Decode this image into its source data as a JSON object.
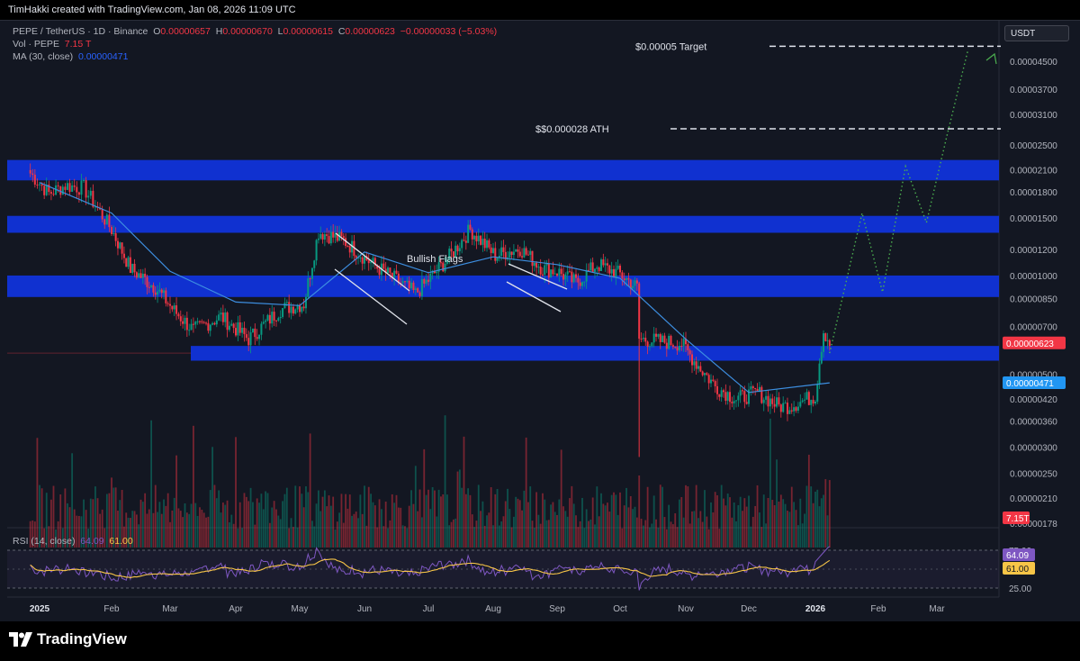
{
  "header": {
    "credit": "TimHakki created with TradingView.com, Jan 08, 2026 11:09 UTC"
  },
  "legend": {
    "symbol": "PEPE / TetherUS · 1D · Binance",
    "o_label": "O",
    "o": "0.00000657",
    "h_label": "H",
    "h": "0.00000670",
    "l_label": "L",
    "l": "0.00000615",
    "c_label": "C",
    "c": "0.00000623",
    "change": "−0.00000033 (−5.03%)",
    "vol_label": "Vol · PEPE",
    "vol": "7.15 T",
    "ma_label": "MA (30, close)",
    "ma": "0.00000471",
    "rsi_label": "RSI (14, close)",
    "rsi": "64.09",
    "rsi_ma": "61.00"
  },
  "currency_button": "USDT",
  "brand": {
    "name": "TradingView"
  },
  "chart_data": {
    "type": "candlestick",
    "symbol": "PEPE / TetherUS",
    "interval": "1D",
    "y_scale": "log",
    "x_ticks": [
      "2025",
      "Feb",
      "Mar",
      "Apr",
      "May",
      "Jun",
      "Jul",
      "Aug",
      "Sep",
      "Oct",
      "Nov",
      "Dec",
      "2026",
      "Feb",
      "Mar"
    ],
    "x_tick_dates": [
      "2025-01-01",
      "2025-02-01",
      "2025-03-01",
      "2025-04-01",
      "2025-05-01",
      "2025-06-01",
      "2025-07-01",
      "2025-08-01",
      "2025-09-01",
      "2025-10-01",
      "2025-11-01",
      "2025-12-01",
      "2026-01-01",
      "2026-02-01",
      "2026-03-01"
    ],
    "y_ticks": [
      "0.00004500",
      "0.00003700",
      "0.00003100",
      "0.00002500",
      "0.00002100",
      "0.00001800",
      "0.00001500",
      "0.00001200",
      "0.00001000",
      "0.00000850",
      "0.00000700",
      "0.00000500",
      "0.00000420",
      "0.00000360",
      "0.00000300",
      "0.00000250",
      "0.00000210",
      "0.00000178"
    ],
    "y_tick_values": [
      4.5e-05,
      3.7e-05,
      3.1e-05,
      2.5e-05,
      2.1e-05,
      1.8e-05,
      1.5e-05,
      1.2e-05,
      1e-05,
      8.5e-06,
      7e-06,
      5e-06,
      4.2e-06,
      3.6e-06,
      3e-06,
      2.5e-06,
      2.1e-06,
      1.78e-06
    ],
    "price_path": {
      "dates": [
        "2024-12-28",
        "2025-01-05",
        "2025-01-12",
        "2025-01-20",
        "2025-02-01",
        "2025-02-10",
        "2025-02-22",
        "2025-03-03",
        "2025-03-12",
        "2025-03-25",
        "2025-04-07",
        "2025-04-22",
        "2025-05-03",
        "2025-05-10",
        "2025-05-22",
        "2025-06-05",
        "2025-06-15",
        "2025-06-25",
        "2025-07-10",
        "2025-07-21",
        "2025-08-02",
        "2025-08-14",
        "2025-08-25",
        "2025-09-01",
        "2025-09-10",
        "2025-09-20",
        "2025-10-01",
        "2025-10-09",
        "2025-10-10",
        "2025-10-20",
        "2025-10-30",
        "2025-11-05",
        "2025-11-15",
        "2025-11-25",
        "2025-12-05",
        "2025-12-15",
        "2025-12-20",
        "2026-01-01",
        "2026-01-03",
        "2026-01-05",
        "2026-01-08"
      ],
      "close": [
        2.05e-05,
        1.78e-05,
        1.88e-05,
        1.85e-05,
        1.38e-05,
        1.05e-05,
        9.2e-06,
        7.8e-06,
        6.8e-06,
        7.5e-06,
        6.4e-06,
        7.9e-06,
        8.2e-06,
        1.36e-05,
        1.28e-05,
        1.08e-05,
        9.8e-06,
        8.8e-06,
        1.12e-05,
        1.38e-05,
        1.15e-05,
        1.21e-05,
        1.05e-05,
        1.03e-05,
        9.5e-06,
        1.08e-05,
        1.01e-05,
        9.2e-06,
        6.4e-06,
        6.3e-06,
        6.2e-06,
        5.5e-06,
        4.6e-06,
        4.2e-06,
        4.4e-06,
        4e-06,
        4e-06,
        4.3e-06,
        5.5e-06,
        6.8e-06,
        6.23e-06
      ]
    },
    "ma_30": {
      "dates": [
        "2025-01-01",
        "2025-02-01",
        "2025-03-01",
        "2025-04-01",
        "2025-05-01",
        "2025-06-01",
        "2025-07-01",
        "2025-08-01",
        "2025-09-01",
        "2025-10-01",
        "2025-11-01",
        "2025-12-01",
        "2026-01-08"
      ],
      "values": [
        1.92e-05,
        1.55e-05,
        1.03e-05,
        8.3e-06,
        8.1e-06,
        1.18e-05,
        1.02e-05,
        1.14e-05,
        1.08e-05,
        9.8e-06,
        6.4e-06,
        4.4e-06,
        4.71e-06
      ]
    },
    "zones": [
      {
        "bottom": 1.95e-05,
        "top": 2.25e-05
      },
      {
        "bottom": 1.35e-05,
        "top": 1.52e-05
      },
      {
        "bottom": 8.6e-06,
        "top": 1e-05
      },
      {
        "bottom": 5.5e-06,
        "top": 6.1e-06
      }
    ],
    "levels": [
      {
        "label": "$0.00005 Target",
        "value": 5e-05
      },
      {
        "label": "$$0.000028 ATH",
        "value": 2.8e-05
      }
    ],
    "annotations": [
      {
        "label": "Bullish Flags"
      }
    ],
    "projection": {
      "dates": [
        "2026-01-08",
        "2026-01-24",
        "2026-02-03",
        "2026-02-14",
        "2026-02-24",
        "2026-03-06",
        "2026-03-16"
      ],
      "values": [
        5.8e-06,
        1.55e-05,
        8.9e-06,
        2.15e-05,
        1.45e-05,
        2.7e-05,
        4.9e-05
      ]
    },
    "price_labels": {
      "last": "0.00000623",
      "last_color": "#f23645",
      "ma": "0.00000471",
      "ma_color": "#2196f3",
      "volume": "7.15T"
    },
    "rsi": {
      "ticks": [
        "75.00",
        "25.00"
      ],
      "tick_values": [
        75,
        25
      ],
      "last": "64.09",
      "ma_last": "61.00",
      "rsi_color": "#7e57c2",
      "ma_color": "#f7c547"
    },
    "colors": {
      "up": "#089981",
      "down": "#f23645",
      "zone": "#1035e8",
      "ma": "#3d8ee0",
      "projection": "#4caf50"
    }
  }
}
